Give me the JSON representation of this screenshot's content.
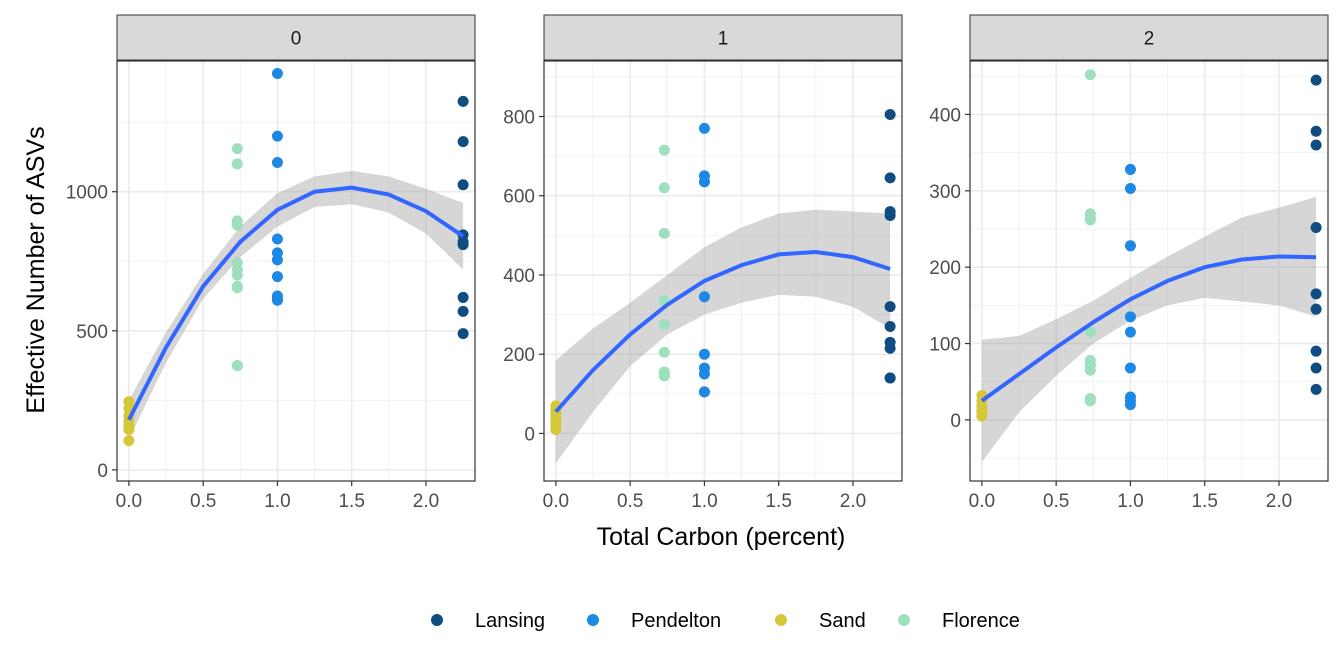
{
  "chart_data": {
    "type": "scatter",
    "xlabel": "Total Carbon (percent)",
    "ylabel": "Effective Number of ASVs",
    "colors": {
      "Lansing": "#0f4c81",
      "Pendelton": "#1e88e5",
      "Sand": "#d4c83a",
      "Florence": "#9ee0bd",
      "smooth_line": "#3366ff",
      "ribbon": "#999999"
    },
    "legend": {
      "position": "bottom",
      "entries": [
        "Lansing",
        "Pendelton",
        "Sand",
        "Florence"
      ]
    },
    "x_ticks": [
      "0.0",
      "0.5",
      "1.0",
      "1.5",
      "2.0"
    ],
    "x_tick_values": [
      0,
      0.5,
      1.0,
      1.5,
      2.0
    ],
    "grid": true,
    "panels": [
      {
        "strip": "0",
        "xlim": [
          -0.08,
          2.33
        ],
        "ylim": [
          -40,
          1470
        ],
        "y_ticks": [
          "0",
          "500",
          "1000"
        ],
        "y_tick_values": [
          0,
          500,
          1000
        ],
        "series": [
          {
            "name": "Lansing",
            "x": [
              2.25,
              2.25,
              2.25,
              2.25,
              2.25,
              2.25,
              2.25,
              2.25,
              2.25
            ],
            "y": [
              1325,
              1180,
              1025,
              845,
              820,
              810,
              620,
              570,
              490
            ]
          },
          {
            "name": "Pendelton",
            "x": [
              1.0,
              1.0,
              1.0,
              1.0,
              1.0,
              1.0,
              1.0,
              1.0,
              1.0,
              1.0
            ],
            "y": [
              1425,
              1200,
              1105,
              830,
              780,
              755,
              695,
              625,
              615,
              610
            ]
          },
          {
            "name": "Sand",
            "x": [
              0,
              0,
              0,
              0,
              0,
              0,
              0
            ],
            "y": [
              245,
              220,
              195,
              175,
              160,
              145,
              105
            ]
          },
          {
            "name": "Florence",
            "x": [
              0.73,
              0.73,
              0.73,
              0.73,
              0.73,
              0.73,
              0.73,
              0.73,
              0.73,
              0.73,
              0.73
            ],
            "y": [
              1155,
              1100,
              895,
              880,
              745,
              720,
              700,
              660,
              655,
              375,
              375
            ]
          }
        ],
        "smooth": {
          "x": [
            0,
            0.25,
            0.5,
            0.75,
            1.0,
            1.25,
            1.5,
            1.75,
            2.0,
            2.25
          ],
          "y": [
            180,
            440,
            660,
            820,
            935,
            1000,
            1015,
            990,
            930,
            840
          ],
          "lo": [
            110,
            385,
            615,
            765,
            875,
            945,
            955,
            925,
            850,
            720
          ],
          "hi": [
            250,
            495,
            705,
            875,
            995,
            1055,
            1075,
            1055,
            1010,
            960
          ]
        }
      },
      {
        "strip": "1",
        "xlim": [
          -0.08,
          2.33
        ],
        "ylim": [
          -120,
          940
        ],
        "y_ticks": [
          "0",
          "200",
          "400",
          "600",
          "800"
        ],
        "y_tick_values": [
          0,
          200,
          400,
          600,
          800
        ],
        "series": [
          {
            "name": "Lansing",
            "x": [
              2.25,
              2.25,
              2.25,
              2.25,
              2.25,
              2.25,
              2.25,
              2.25,
              2.25,
              2.25
            ],
            "y": [
              805,
              645,
              560,
              550,
              320,
              270,
              230,
              215,
              140,
              140
            ]
          },
          {
            "name": "Pendelton",
            "x": [
              1.0,
              1.0,
              1.0,
              1.0,
              1.0,
              1.0,
              1.0,
              1.0,
              1.0
            ],
            "y": [
              770,
              650,
              635,
              345,
              200,
              165,
              150,
              105,
              105
            ]
          },
          {
            "name": "Sand",
            "x": [
              0,
              0,
              0,
              0,
              0,
              0,
              0
            ],
            "y": [
              70,
              60,
              50,
              40,
              30,
              20,
              10
            ]
          },
          {
            "name": "Florence",
            "x": [
              0.73,
              0.73,
              0.73,
              0.73,
              0.73,
              0.73,
              0.73,
              0.73,
              0.73
            ],
            "y": [
              715,
              620,
              505,
              335,
              275,
              205,
              155,
              150,
              145
            ]
          }
        ],
        "smooth": {
          "x": [
            0,
            0.25,
            0.5,
            0.75,
            1.0,
            1.25,
            1.5,
            1.75,
            2.0,
            2.25
          ],
          "y": [
            55,
            160,
            250,
            325,
            385,
            425,
            452,
            458,
            445,
            415
          ],
          "lo": [
            -75,
            55,
            170,
            250,
            300,
            330,
            350,
            345,
            320,
            265
          ],
          "hi": [
            185,
            265,
            330,
            400,
            470,
            520,
            555,
            565,
            560,
            555
          ]
        }
      },
      {
        "strip": "2",
        "xlim": [
          -0.08,
          2.33
        ],
        "ylim": [
          -80,
          470
        ],
        "y_ticks": [
          "0",
          "100",
          "200",
          "300",
          "400"
        ],
        "y_tick_values": [
          0,
          100,
          200,
          300,
          400
        ],
        "series": [
          {
            "name": "Lansing",
            "x": [
              2.25,
              2.25,
              2.25,
              2.25,
              2.25,
              2.25,
              2.25,
              2.25,
              2.25
            ],
            "y": [
              445,
              378,
              360,
              252,
              165,
              145,
              90,
              68,
              40
            ]
          },
          {
            "name": "Pendelton",
            "x": [
              1.0,
              1.0,
              1.0,
              1.0,
              1.0,
              1.0,
              1.0,
              1.0,
              1.0
            ],
            "y": [
              328,
              303,
              228,
              135,
              115,
              68,
              30,
              25,
              20
            ]
          },
          {
            "name": "Sand",
            "x": [
              0,
              0,
              0,
              0,
              0,
              0
            ],
            "y": [
              32,
              25,
              18,
              12,
              8,
              5
            ]
          },
          {
            "name": "Florence",
            "x": [
              0.73,
              0.73,
              0.73,
              0.73,
              0.73,
              0.73,
              0.73,
              0.73,
              0.73,
              0.73
            ],
            "y": [
              452,
              270,
              265,
              262,
              115,
              78,
              72,
              65,
              28,
              25
            ]
          }
        ],
        "smooth": {
          "x": [
            0,
            0.25,
            0.5,
            0.75,
            1.0,
            1.25,
            1.5,
            1.75,
            2.0,
            2.25
          ],
          "y": [
            25,
            60,
            95,
            128,
            158,
            182,
            200,
            210,
            214,
            213
          ],
          "lo": [
            -55,
            10,
            58,
            100,
            130,
            150,
            160,
            155,
            150,
            135
          ],
          "hi": [
            105,
            110,
            132,
            156,
            186,
            214,
            240,
            265,
            278,
            292
          ]
        }
      }
    ]
  }
}
